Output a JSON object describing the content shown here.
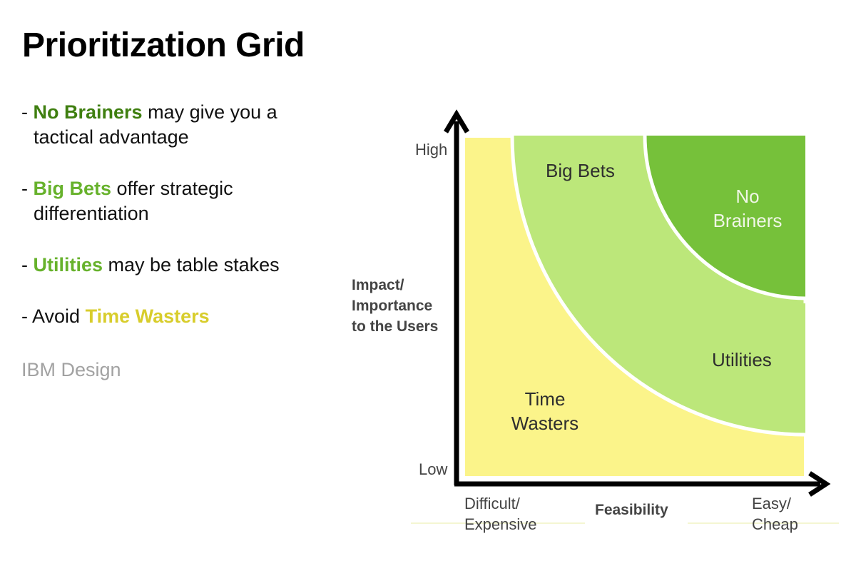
{
  "slide": {
    "title": "Prioritization Grid",
    "bullets": [
      {
        "prefix": "- ",
        "highlight": "No Brainers",
        "line1_rest": " may give you a",
        "line2": "tactical advantage"
      },
      {
        "prefix": "- ",
        "highlight": "Big Bets",
        "line1_rest": " offer strategic",
        "line2": "differentiation"
      },
      {
        "prefix": "- ",
        "highlight": "Utilities",
        "line1_rest": " may be table stakes"
      },
      {
        "prefix": "- Avoid ",
        "highlight": "Time Wasters"
      }
    ],
    "credit": "IBM Design"
  },
  "diagram": {
    "y_axis": {
      "label_line1": "Impact/",
      "label_line2": "Importance",
      "label_line3": "to the Users",
      "high": "High",
      "low": "Low"
    },
    "x_axis": {
      "label": "Feasibility",
      "left_line1": "Difficult/",
      "left_line2": "Expensive",
      "right_line1": "Easy/",
      "right_line2": "Cheap"
    },
    "regions": {
      "big_bets": "Big Bets",
      "no_brainers_line1": "No",
      "no_brainers_line2": "Brainers",
      "utilities": "Utilities",
      "time_wasters_line1": "Time",
      "time_wasters_line2": "Wasters"
    },
    "colors": {
      "time_wasters": "#fbf48a",
      "big_bets_utilities": "#bce77a",
      "no_brainers": "#76c13a",
      "axis": "#000000",
      "divider": "#ffffff"
    }
  }
}
